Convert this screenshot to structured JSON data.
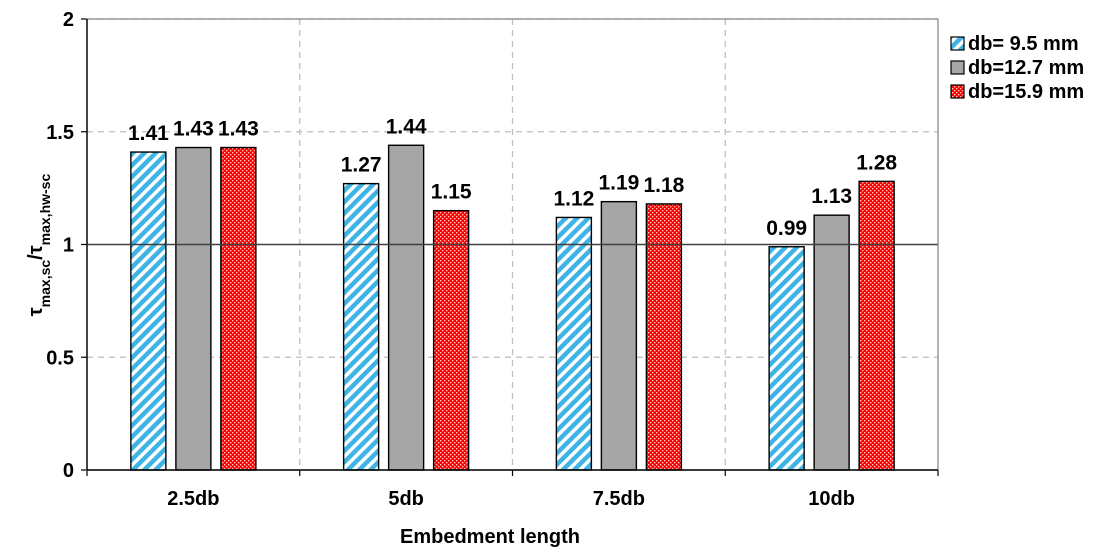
{
  "chart_data": {
    "type": "bar",
    "categories": [
      "2.5db",
      "5db",
      "7.5db",
      "10db"
    ],
    "series": [
      {
        "name": "db= 9.5 mm",
        "values": [
          1.41,
          1.27,
          1.12,
          0.99
        ],
        "labels": [
          "1.41",
          "1.27",
          "1.12",
          "0.99"
        ],
        "color": "#3eb4e6",
        "pattern": "diagonal-stripes"
      },
      {
        "name": "db=12.7 mm",
        "values": [
          1.43,
          1.44,
          1.19,
          1.13
        ],
        "labels": [
          "1.43",
          "1.44",
          "1.19",
          "1.13"
        ],
        "color": "#a6a6a6",
        "pattern": "solid"
      },
      {
        "name": "db=15.9 mm",
        "values": [
          1.43,
          1.15,
          1.18,
          1.28
        ],
        "labels": [
          "1.43",
          "1.15",
          "1.18",
          "1.28"
        ],
        "color": "#ff0000",
        "pattern": "dotted"
      }
    ],
    "xlabel": "Embedment length",
    "ylabel": {
      "base": "τ",
      "sub1": "max,sc",
      "sep": "/τ",
      "sub2": "max,hw-sc"
    },
    "ylim": [
      0,
      2
    ],
    "yticks": [
      "0",
      "0.5",
      "1",
      "1.5",
      "2"
    ],
    "reference_line": 1,
    "grid": "dashed",
    "legend_position": "right"
  }
}
